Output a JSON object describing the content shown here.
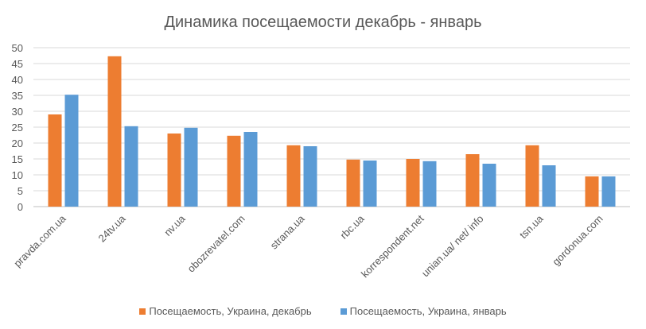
{
  "chart_data": {
    "type": "bar",
    "title": "Динамика посещаемости декабрь - январь",
    "categories": [
      "pravda.com.ua",
      "24tv.ua",
      "nv.ua",
      "obozrevatel.com",
      "strana.ua",
      "rbc.ua",
      "korrespondent.net",
      "unian.ua/ net/ info",
      "tsn.ua",
      "gordonua.com"
    ],
    "series": [
      {
        "name": "Посещаемость, Украина, декабрь",
        "color": "#ED7D31",
        "values": [
          29.0,
          47.3,
          23.0,
          22.3,
          19.3,
          14.8,
          15.0,
          16.5,
          19.3,
          9.5
        ]
      },
      {
        "name": "Посещаемость, Украина, январь",
        "color": "#5B9BD5",
        "values": [
          35.2,
          25.3,
          24.8,
          23.5,
          19.0,
          14.5,
          14.3,
          13.5,
          13.0,
          9.5
        ]
      }
    ],
    "yticks": [
      0,
      5,
      10,
      15,
      20,
      25,
      30,
      35,
      40,
      45,
      50
    ],
    "ylim": [
      0,
      50
    ],
    "grid": true,
    "legend": "bottom",
    "xlabel": "",
    "ylabel": ""
  }
}
